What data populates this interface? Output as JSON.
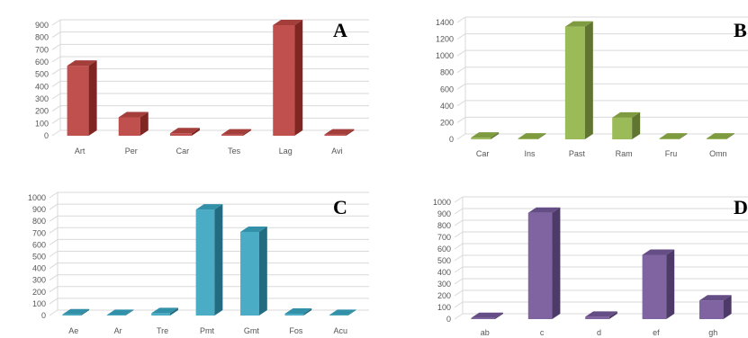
{
  "chart_data": [
    {
      "type": "bar",
      "panel_label": "A",
      "categories": [
        "Art",
        "Per",
        "Car",
        "Tes",
        "Lag",
        "Avi"
      ],
      "values": [
        570,
        150,
        20,
        10,
        900,
        10
      ],
      "ylim": [
        0,
        900
      ],
      "yticks": [
        0,
        100,
        200,
        300,
        400,
        500,
        600,
        700,
        800,
        900
      ],
      "grid": true,
      "colors": {
        "front": "#c0504d",
        "side": "#7f2623",
        "top": "#a33e3b"
      }
    },
    {
      "type": "bar",
      "panel_label": "B",
      "categories": [
        "Car",
        "Ins",
        "Past",
        "Ram",
        "Fru",
        "Omn"
      ],
      "values": [
        20,
        10,
        1350,
        260,
        10,
        10
      ],
      "ylim": [
        0,
        1400
      ],
      "yticks": [
        0,
        200,
        400,
        600,
        800,
        1000,
        1200,
        1400
      ],
      "grid": true,
      "colors": {
        "front": "#9bbb59",
        "side": "#5f7530",
        "top": "#7e9b40"
      }
    },
    {
      "type": "bar",
      "panel_label": "C",
      "categories": [
        "Ae",
        "Ar",
        "Tre",
        "Pmt",
        "Gmt",
        "Fos",
        "Acu"
      ],
      "values": [
        10,
        5,
        20,
        900,
        710,
        15,
        5
      ],
      "ylim": [
        0,
        1000
      ],
      "yticks": [
        0,
        100,
        200,
        300,
        400,
        500,
        600,
        700,
        800,
        900,
        1000
      ],
      "grid": true,
      "colors": {
        "front": "#4bacc6",
        "side": "#236b80",
        "top": "#3290a8"
      }
    },
    {
      "type": "bar",
      "panel_label": "D",
      "categories": [
        "ab",
        "c",
        "d",
        "ef",
        "gh"
      ],
      "values": [
        10,
        910,
        20,
        550,
        160
      ],
      "ylim": [
        0,
        1000
      ],
      "yticks": [
        0,
        100,
        200,
        300,
        400,
        500,
        600,
        700,
        800,
        900,
        1000
      ],
      "grid": true,
      "colors": {
        "front": "#8064a2",
        "side": "#4e3a68",
        "top": "#654d85"
      }
    }
  ]
}
